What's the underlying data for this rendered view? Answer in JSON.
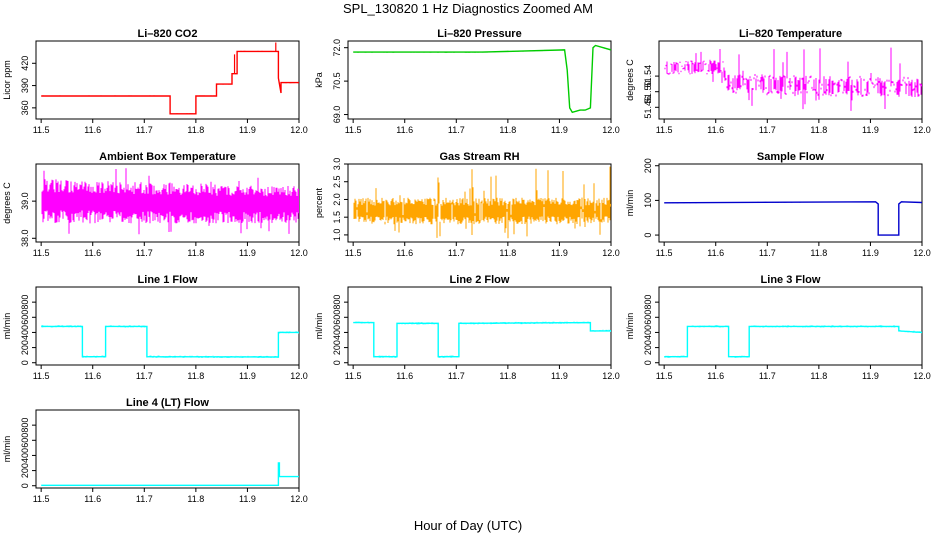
{
  "figure": {
    "title": "SPL_130820  1 Hz Diagnostics Zoomed AM",
    "xlabel": "Hour of Day (UTC)"
  },
  "chart_data": [
    {
      "type": "line",
      "title": "Li–820 CO2",
      "ylabel": "Licor ppm",
      "color": "#ff0000",
      "xlim": [
        11.49,
        12.0
      ],
      "ylim": [
        345,
        450
      ],
      "xticks": [
        "11.5",
        "11.6",
        "11.7",
        "11.8",
        "11.9",
        "12.0"
      ],
      "yticks": [
        "360",
        "390",
        "420"
      ],
      "noise": 0.6,
      "series": [
        {
          "x": [
            11.5,
            11.75,
            11.75,
            11.8,
            11.8,
            11.84,
            11.84,
            11.87,
            11.87,
            11.88,
            11.88,
            11.96,
            11.96,
            11.965,
            11.965,
            12.0
          ],
          "y": [
            376,
            376,
            352,
            352,
            376,
            376,
            392,
            392,
            406,
            406,
            436,
            436,
            400,
            380,
            394,
            394
          ]
        }
      ],
      "spikes": [
        {
          "x": 11.955,
          "y": 448
        },
        {
          "x": 11.875,
          "y": 432
        }
      ]
    },
    {
      "type": "line",
      "title": "Li–820 Pressure",
      "ylabel": "kPa",
      "color": "#00cc00",
      "xlim": [
        11.49,
        12.0
      ],
      "ylim": [
        68.8,
        72.3
      ],
      "xticks": [
        "11.5",
        "11.6",
        "11.7",
        "11.8",
        "11.9",
        "12.0"
      ],
      "yticks": [
        "69.0",
        "70.5",
        "72.0"
      ],
      "noise": 0.02,
      "series": [
        {
          "x": [
            11.5,
            11.75,
            11.91,
            11.915,
            11.92,
            11.925,
            11.94,
            11.95,
            11.96,
            11.965,
            11.97,
            12.0
          ],
          "y": [
            71.8,
            71.8,
            71.9,
            71.0,
            69.3,
            69.1,
            69.2,
            69.2,
            69.3,
            72.0,
            72.1,
            71.9
          ]
        }
      ],
      "spikes": []
    },
    {
      "type": "band",
      "title": "Li–820 Temperature",
      "ylabel": "degrees C",
      "color": "#ff00ff",
      "xlim": [
        11.49,
        12.0
      ],
      "ylim": [
        51.43,
        51.63
      ],
      "xticks": [
        "11.5",
        "11.6",
        "11.7",
        "11.8",
        "11.9",
        "12.0"
      ],
      "yticks": [
        "51.46",
        "51.50",
        "51.54"
      ],
      "band": {
        "x": [
          11.5,
          11.615,
          11.62,
          12.0
        ],
        "low": [
          51.545,
          51.545,
          51.495,
          51.485
        ],
        "high": [
          51.58,
          51.58,
          51.545,
          51.535
        ]
      },
      "density": 0.35,
      "spikeLow": 51.45,
      "spikeHigh": 51.615
    },
    {
      "type": "band",
      "title": "Ambient Box Temperature",
      "ylabel": "degrees C",
      "color": "#ff00ff",
      "xlim": [
        11.49,
        12.0
      ],
      "ylim": [
        37.9,
        40.0
      ],
      "xticks": [
        "11.5",
        "11.6",
        "11.7",
        "11.8",
        "11.9",
        "12.0"
      ],
      "yticks": [
        "38.0",
        "39.0"
      ],
      "band": {
        "x": [
          11.5,
          12.0
        ],
        "low": [
          38.4,
          38.4
        ],
        "high": [
          39.6,
          39.4
        ]
      },
      "density": 1.0,
      "spikeLow": 38.0,
      "spikeHigh": 39.9
    },
    {
      "type": "band",
      "title": "Gas Stream RH",
      "ylabel": "percent",
      "color": "#ffa500",
      "xlim": [
        11.49,
        12.0
      ],
      "ylim": [
        0.8,
        3.0
      ],
      "xticks": [
        "11.5",
        "11.6",
        "11.7",
        "11.8",
        "11.9",
        "12.0"
      ],
      "yticks": [
        "1.0",
        "1.5",
        "2.0",
        "2.5",
        "3.0"
      ],
      "band": {
        "x": [
          11.5,
          12.0
        ],
        "low": [
          1.3,
          1.3
        ],
        "high": [
          2.05,
          2.05
        ]
      },
      "density": 0.9,
      "spikeLow": 0.9,
      "spikeHigh": 2.95
    },
    {
      "type": "line",
      "title": "Sample Flow",
      "ylabel": "ml/min",
      "color": "#0000cc",
      "xlim": [
        11.49,
        12.0
      ],
      "ylim": [
        -20,
        205
      ],
      "xticks": [
        "11.5",
        "11.6",
        "11.7",
        "11.8",
        "11.9",
        "12.0"
      ],
      "yticks": [
        "0",
        "100",
        "200"
      ],
      "noise": 1.0,
      "series": [
        {
          "x": [
            11.5,
            11.91,
            11.91,
            11.915,
            11.915,
            11.955,
            11.955,
            11.96,
            11.96,
            12.0
          ],
          "y": [
            93,
            96,
            96,
            90,
            0,
            0,
            90,
            96,
            96,
            94
          ]
        }
      ],
      "spikes": []
    },
    {
      "type": "line",
      "title": "Line 1 Flow",
      "ylabel": "ml/min",
      "color": "#00ffff",
      "xlim": [
        11.49,
        12.0
      ],
      "ylim": [
        -30,
        1000
      ],
      "xticks": [
        "11.5",
        "11.6",
        "11.7",
        "11.8",
        "11.9",
        "12.0"
      ],
      "yticks": [
        "0",
        "200",
        "400",
        "600",
        "800"
      ],
      "noise": 12,
      "series": [
        {
          "x": [
            11.5,
            11.58,
            11.58,
            11.625,
            11.625,
            11.705,
            11.705,
            11.96,
            11.96,
            12.0
          ],
          "y": [
            480,
            480,
            80,
            80,
            480,
            480,
            80,
            75,
            400,
            400
          ]
        }
      ],
      "spikes": []
    },
    {
      "type": "line",
      "title": "Line 2 Flow",
      "ylabel": "ml/min",
      "color": "#00ffff",
      "xlim": [
        11.49,
        12.0
      ],
      "ylim": [
        -30,
        1000
      ],
      "xticks": [
        "11.5",
        "11.6",
        "11.7",
        "11.8",
        "11.9",
        "12.0"
      ],
      "yticks": [
        "0",
        "200",
        "400",
        "600",
        "800"
      ],
      "noise": 12,
      "series": [
        {
          "x": [
            11.5,
            11.54,
            11.54,
            11.585,
            11.585,
            11.665,
            11.665,
            11.705,
            11.705,
            11.96,
            11.96,
            12.0
          ],
          "y": [
            530,
            530,
            80,
            80,
            520,
            520,
            80,
            80,
            520,
            530,
            420,
            420
          ]
        }
      ],
      "spikes": []
    },
    {
      "type": "line",
      "title": "Line 3 Flow",
      "ylabel": "ml/min",
      "color": "#00ffff",
      "xlim": [
        11.49,
        12.0
      ],
      "ylim": [
        -30,
        1000
      ],
      "xticks": [
        "11.5",
        "11.6",
        "11.7",
        "11.8",
        "11.9",
        "12.0"
      ],
      "yticks": [
        "0",
        "200",
        "400",
        "600",
        "800"
      ],
      "noise": 12,
      "series": [
        {
          "x": [
            11.5,
            11.545,
            11.545,
            11.625,
            11.625,
            11.665,
            11.665,
            11.955,
            11.955,
            12.0
          ],
          "y": [
            80,
            80,
            480,
            480,
            80,
            80,
            480,
            480,
            420,
            400
          ]
        }
      ],
      "spikes": []
    },
    {
      "type": "line",
      "title": "Line 4 (LT) Flow",
      "ylabel": "ml/min",
      "color": "#00ffff",
      "xlim": [
        11.49,
        12.0
      ],
      "ylim": [
        -30,
        1000
      ],
      "xticks": [
        "11.5",
        "11.6",
        "11.7",
        "11.8",
        "11.9",
        "12.0"
      ],
      "yticks": [
        "0",
        "200",
        "400",
        "600",
        "800"
      ],
      "noise": 3,
      "series": [
        {
          "x": [
            11.5,
            11.96,
            11.96,
            11.962,
            11.962,
            12.0
          ],
          "y": [
            5,
            5,
            300,
            300,
            120,
            120
          ]
        }
      ],
      "spikes": []
    }
  ]
}
